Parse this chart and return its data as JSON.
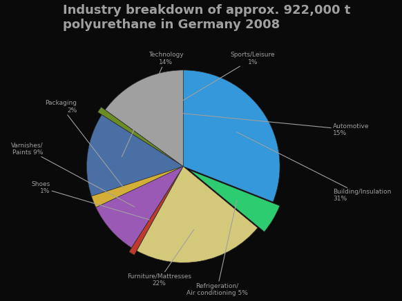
{
  "title": "Industry breakdown of approx. 922,000 t\npolyurethane in Germany 2008",
  "labels": [
    "Automotive\n15%",
    "Sports/Leisure\n1%",
    "Technology\n14%",
    "Packaging\n2%",
    "Varnishes/\nPaints 9%",
    "Shoes\n1%",
    "Furniture/Mattresses\n22%",
    "Refrigeration/\nAir conditioning 5%",
    "Building/Insulation\n31%"
  ],
  "sizes": [
    15,
    1,
    14,
    2,
    9,
    1,
    22,
    5,
    31
  ],
  "colors": [
    "#a0a0a0",
    "#6b8e23",
    "#4a6fa5",
    "#d4af37",
    "#9b59b6",
    "#c0392b",
    "#d4c87a",
    "#2ecc71",
    "#3498db"
  ],
  "explode": [
    0,
    0.05,
    0,
    0,
    0,
    0.05,
    0,
    0.08,
    0
  ],
  "startangle": 90,
  "background_color": "#0a0a0a",
  "title_color": "#a0a0a0",
  "title_fontsize": 13
}
